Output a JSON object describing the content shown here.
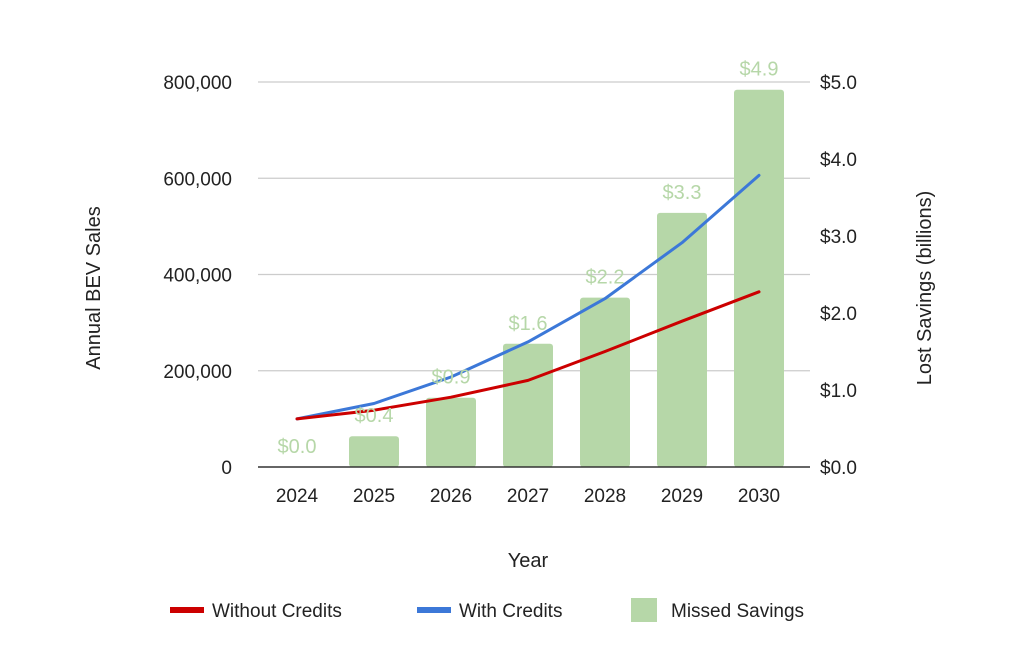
{
  "chart_data": {
    "type": "combo",
    "title": "",
    "xlabel": "Year",
    "ylabel": "Annual BEV Sales",
    "ylabel_right": "Lost Savings (billions)",
    "categories": [
      "2024",
      "2025",
      "2026",
      "2027",
      "2028",
      "2029",
      "2030"
    ],
    "ylim": [
      0,
      800000
    ],
    "yticks": [
      "0",
      "200,000",
      "400,000",
      "600,000",
      "800,000"
    ],
    "ylim_right": [
      0,
      5
    ],
    "yticks_right": [
      "$0.0",
      "$1.0",
      "$2.0",
      "$3.0",
      "$4.0",
      "$5.0"
    ],
    "grid": true,
    "legend_position": "bottom",
    "series": [
      {
        "name": "Without Credits",
        "type": "line",
        "axis": "left",
        "color": "#cc0000",
        "values": [
          100000,
          118000,
          145000,
          180000,
          240000,
          303000,
          364000
        ]
      },
      {
        "name": "With Credits",
        "type": "line",
        "axis": "left",
        "color": "#3c78d8",
        "values": [
          100000,
          132000,
          187000,
          260000,
          350000,
          466000,
          606000
        ]
      },
      {
        "name": "Missed Savings",
        "type": "bar",
        "axis": "right",
        "color": "#b6d7a8",
        "values": [
          0.0,
          0.4,
          0.9,
          1.6,
          2.2,
          3.3,
          4.9
        ],
        "data_labels": [
          "$0.0",
          "$0.4",
          "$0.9",
          "$1.6",
          "$2.2",
          "$3.3",
          "$4.9"
        ]
      }
    ]
  }
}
